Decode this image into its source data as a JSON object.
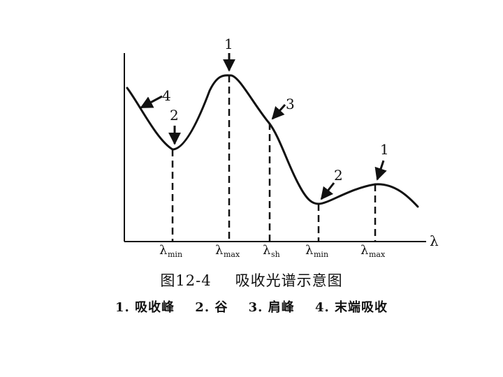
{
  "figure": {
    "axis_label": "λ",
    "ticks": [
      {
        "symbol": "λ",
        "sub": "min"
      },
      {
        "symbol": "λ",
        "sub": "max"
      },
      {
        "symbol": "λ",
        "sub": "sh"
      },
      {
        "symbol": "λ",
        "sub": "min"
      },
      {
        "symbol": "λ",
        "sub": "max"
      }
    ],
    "markers": [
      {
        "label": "4",
        "meaning": "末端吸收"
      },
      {
        "label": "2",
        "meaning": "谷"
      },
      {
        "label": "1",
        "meaning": "吸收峰"
      },
      {
        "label": "3",
        "meaning": "肩峰"
      },
      {
        "label": "2",
        "meaning": "谷"
      },
      {
        "label": "1",
        "meaning": "吸收峰"
      }
    ],
    "caption": {
      "number": "图12-4",
      "title": "吸收光谱示意图"
    },
    "legend": [
      "1. 吸收峰",
      "2. 谷",
      "3. 肩峰",
      "4. 末端吸收"
    ],
    "colors": {
      "ink": "#111111",
      "background": "#ffffff"
    }
  }
}
